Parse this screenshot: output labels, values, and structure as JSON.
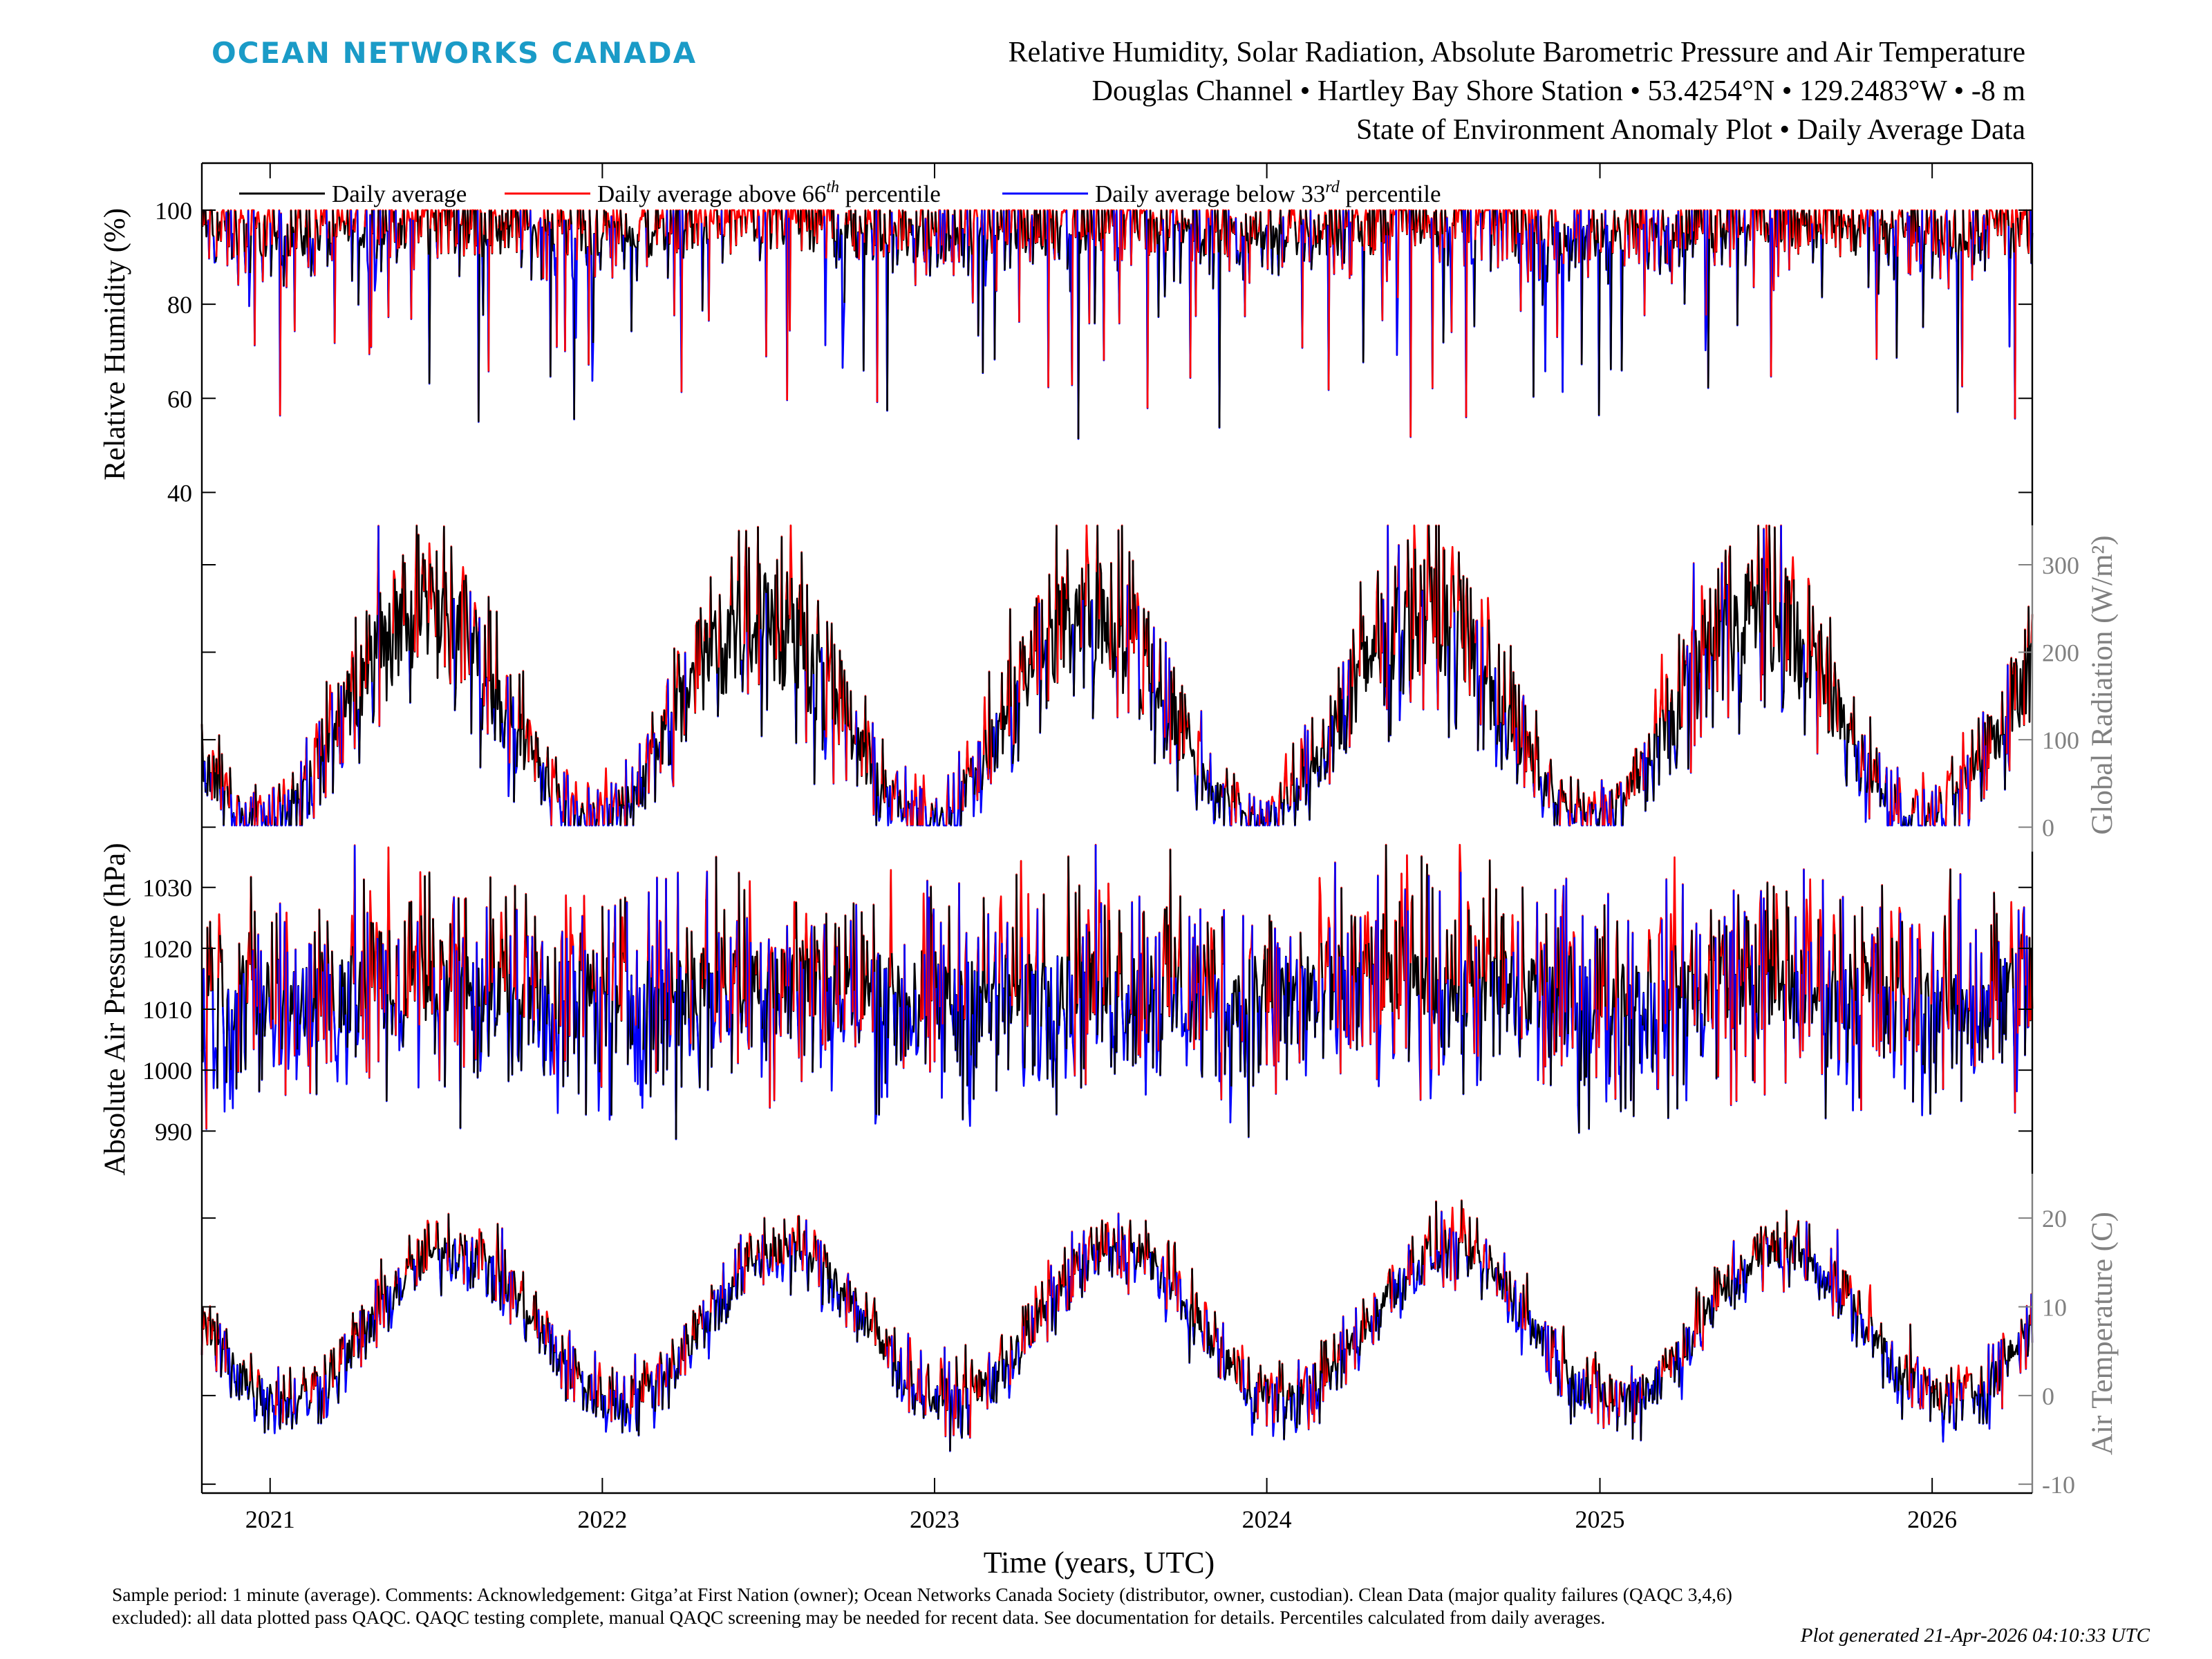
{
  "header": {
    "logo_text": "OCEAN NETWORKS CANADA",
    "title_line1": "Relative Humidity, Solar Radiation, Absolute Barometric Pressure and Air Temperature",
    "title_line2": "Douglas Channel • Hartley Bay Shore Station • 53.4254°N • 129.2483°W • -8 m",
    "title_line3": "State of Environment Anomaly Plot • Daily Average Data"
  },
  "footer": {
    "note": "Sample period: 1 minute (average). Comments: Acknowledgement: Gitga’at First Nation (owner); Ocean Networks Canada Society (distributor, owner, custodian). Clean Data (major quality failures (QAQC 3,4,6) excluded): all data plotted pass QAQC. QAQC testing complete, manual QAQC screening may be needed for recent data. See documentation for details. Percentiles calculated from daily averages.",
    "generated": "Plot generated 21-Apr-2026 04:10:33 UTC"
  },
  "colors": {
    "daily_average": "#000000",
    "above": "#ff0000",
    "below": "#0000ff",
    "right_axis": "#808080",
    "logo": "#1a9bc7"
  },
  "chart_data": {
    "type": "line",
    "xlabel": "Time (years, UTC)",
    "x_ticks": [
      "2021",
      "2022",
      "2023",
      "2024",
      "2025",
      "2026"
    ],
    "x_range": [
      "2020-10-18",
      "2026-04-21"
    ],
    "legend": {
      "placement": "top-left",
      "entries": [
        {
          "label": "Daily average",
          "sup": "",
          "suffix": "",
          "color": "#000000"
        },
        {
          "label": "Daily average above 66",
          "sup": "th",
          "suffix": " percentile",
          "color": "#ff0000"
        },
        {
          "label": "Daily average below 33",
          "sup": "rd",
          "suffix": " percentile",
          "color": "#0000ff"
        }
      ]
    },
    "panels": [
      {
        "id": "humidity",
        "ylabel": "Relative Humidity (%)",
        "axis_side": "left",
        "ylim": [
          33,
          110
        ],
        "yticks": [
          40,
          60,
          80,
          100
        ],
        "baseline": 97,
        "seasonal_amp": 2,
        "seasonal_phase": 0.5,
        "noise": 5,
        "lower_bound": 33,
        "upper_bound": 100,
        "dip_chance": 0.07,
        "dip_depth": 40,
        "above_threshold": 97,
        "below_threshold": 90
      },
      {
        "id": "solar",
        "ylabel": "Global Radiation (W/m²)",
        "axis_side": "right",
        "ylim": [
          -20,
          345
        ],
        "yticks": [
          0,
          100,
          200,
          300
        ],
        "baseline": 130,
        "seasonal_amp": 120,
        "seasonal_phase": 0.47,
        "noise": 60,
        "lower_bound": 2,
        "upper_bound": 345,
        "dip_chance": 0.0,
        "dip_depth": 0,
        "above_threshold_factor": 1.15,
        "below_threshold_factor": 0.65
      },
      {
        "id": "pressure",
        "ylabel": "Absolute Air Pressure (hPa)",
        "axis_side": "left",
        "ylim": [
          983,
          1037
        ],
        "yticks": [
          990,
          1000,
          1010,
          1020,
          1030
        ],
        "baseline": 1013,
        "seasonal_amp": 2,
        "seasonal_phase": 0.5,
        "noise": 9,
        "lower_bound": 984,
        "upper_bound": 1037,
        "dip_chance": 0.0,
        "dip_depth": 0,
        "above_threshold": 1019,
        "below_threshold": 1008
      },
      {
        "id": "temperature",
        "ylabel": "Air Temperature (C)",
        "axis_side": "right",
        "ylim": [
          -11,
          25
        ],
        "yticks": [
          -10,
          0,
          10,
          20
        ],
        "baseline": 8,
        "seasonal_amp": 8.5,
        "seasonal_phase": 0.55,
        "noise": 2.2,
        "lower_bound": -10.5,
        "upper_bound": 25,
        "dip_chance": 0.0,
        "dip_depth": 0,
        "above_threshold_offset": 1.6,
        "below_threshold_offset": -1.6
      }
    ]
  }
}
